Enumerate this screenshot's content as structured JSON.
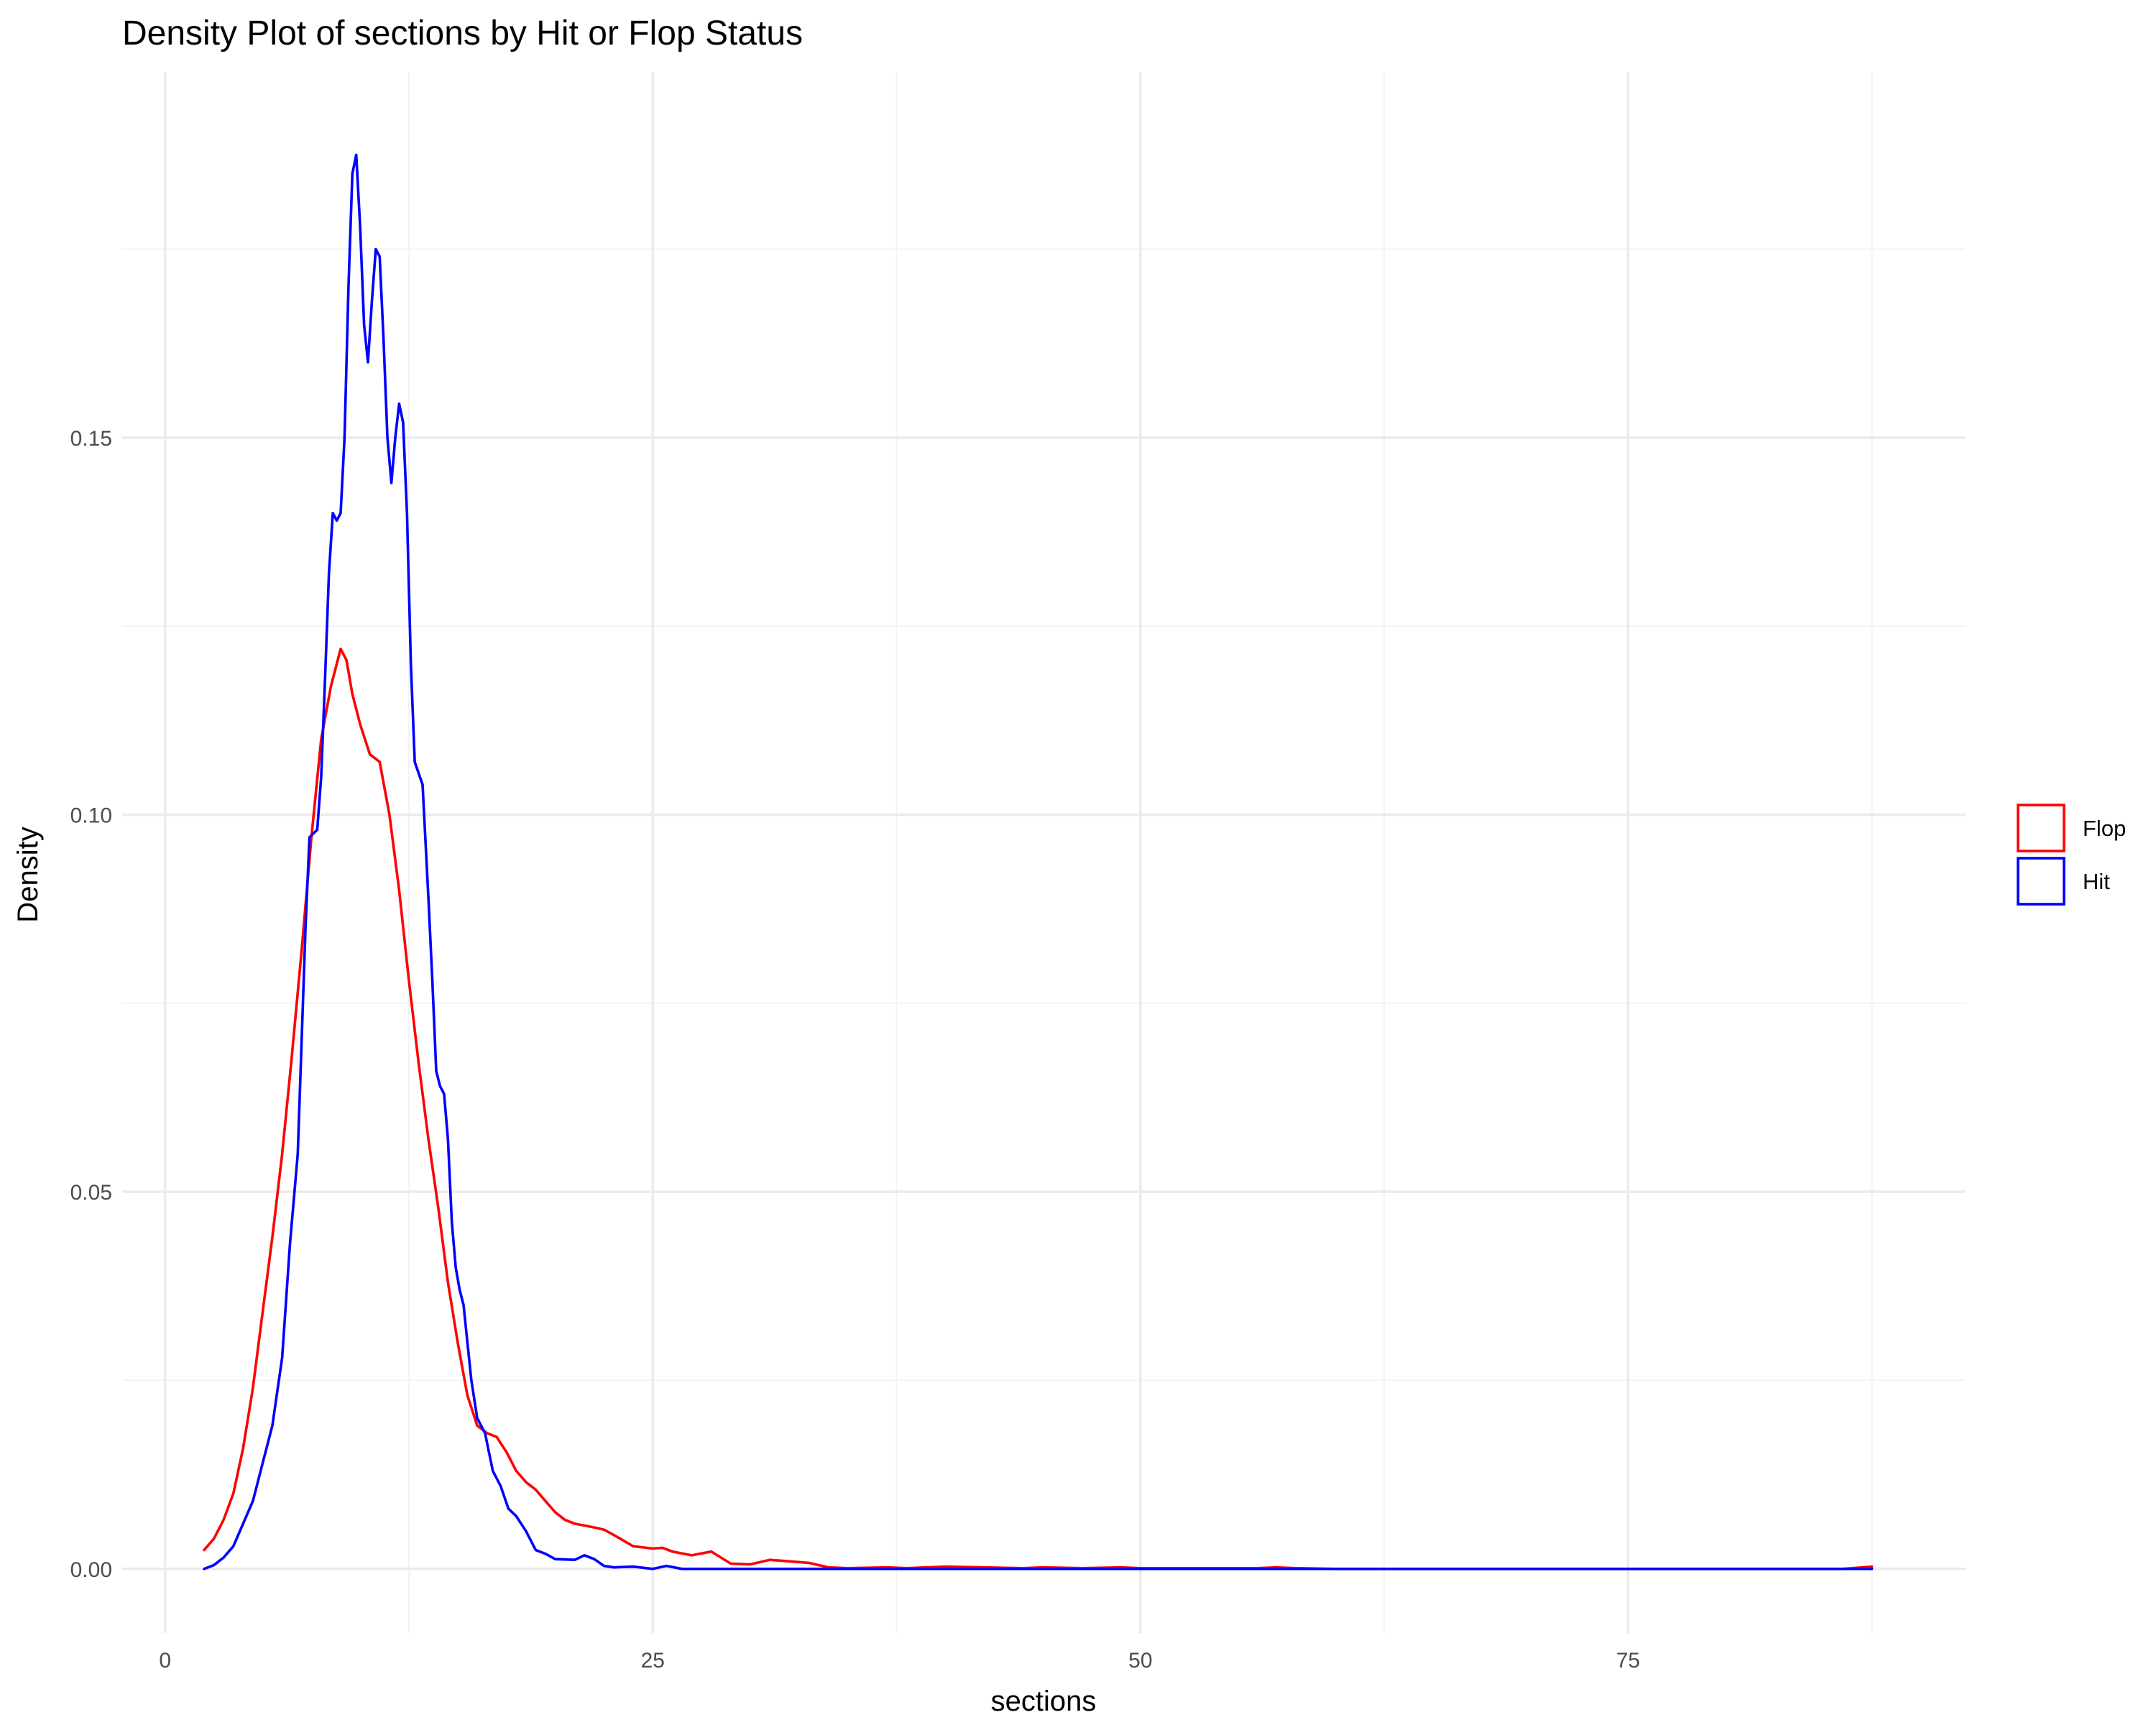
{
  "chart_data": {
    "type": "line",
    "title": "Density Plot of sections by Hit or Flop Status",
    "xlabel": "sections",
    "ylabel": "Density",
    "xlim": [
      -2.2,
      92.3
    ],
    "ylim": [
      -0.0085,
      0.1985
    ],
    "x_ticks": [
      0,
      25,
      50,
      75
    ],
    "x_tick_labels": [
      "0",
      "25",
      "50",
      "75"
    ],
    "x_minor": [
      12.5,
      37.5,
      62.5,
      87.5
    ],
    "y_ticks": [
      0,
      0.05,
      0.1,
      0.15
    ],
    "y_tick_labels": [
      "0.00",
      "0.05",
      "0.10",
      "0.15"
    ],
    "y_minor": [
      0.025,
      0.075,
      0.125,
      0.175
    ],
    "grid": true,
    "legend_position": "right",
    "series": [
      {
        "name": "Flop",
        "color": "#FF0000",
        "points": [
          [
            2,
            0.0025
          ],
          [
            2.5,
            0.004
          ],
          [
            3,
            0.0065
          ],
          [
            3.5,
            0.01
          ],
          [
            4,
            0.016
          ],
          [
            4.5,
            0.024
          ],
          [
            5,
            0.034
          ],
          [
            5.5,
            0.044
          ],
          [
            6,
            0.055
          ],
          [
            6.5,
            0.068
          ],
          [
            7,
            0.082
          ],
          [
            7.5,
            0.097
          ],
          [
            8,
            0.11
          ],
          [
            8.5,
            0.117
          ],
          [
            9,
            0.122
          ],
          [
            9.3,
            0.1205
          ],
          [
            9.6,
            0.116
          ],
          [
            10,
            0.112
          ],
          [
            10.5,
            0.108
          ],
          [
            11,
            0.107
          ],
          [
            11.5,
            0.1
          ],
          [
            12,
            0.09
          ],
          [
            12.5,
            0.078
          ],
          [
            13,
            0.067
          ],
          [
            13.5,
            0.057
          ],
          [
            14,
            0.048
          ],
          [
            14.5,
            0.038
          ],
          [
            15,
            0.03
          ],
          [
            15.5,
            0.023
          ],
          [
            16,
            0.019
          ],
          [
            16.5,
            0.018
          ],
          [
            17,
            0.0175
          ],
          [
            17.5,
            0.0155
          ],
          [
            18,
            0.013
          ],
          [
            18.5,
            0.0115
          ],
          [
            19,
            0.0105
          ],
          [
            19.5,
            0.009
          ],
          [
            20,
            0.0075
          ],
          [
            20.5,
            0.0065
          ],
          [
            21,
            0.006
          ],
          [
            22,
            0.0055
          ],
          [
            22.5,
            0.0052
          ],
          [
            23,
            0.0045
          ],
          [
            24,
            0.003
          ],
          [
            25,
            0.0027
          ],
          [
            25.5,
            0.0028
          ],
          [
            26,
            0.0023
          ],
          [
            27,
            0.0018
          ],
          [
            28,
            0.0023
          ],
          [
            28.5,
            0.0015
          ],
          [
            29,
            0.0007
          ],
          [
            30,
            0.0006
          ],
          [
            31,
            0.0012
          ],
          [
            32,
            0.001
          ],
          [
            33,
            0.0008
          ],
          [
            34,
            0.0002
          ],
          [
            35,
            0.0001
          ],
          [
            37,
            0.0002
          ],
          [
            38,
            0.0001
          ],
          [
            40,
            0.0003
          ],
          [
            42,
            0.0002
          ],
          [
            44,
            0.0001
          ],
          [
            45,
            0.0002
          ],
          [
            47,
            0.0001
          ],
          [
            49,
            0.0002
          ],
          [
            50,
            0.0001
          ],
          [
            56,
            0.0001
          ],
          [
            57,
            0.0002
          ],
          [
            58,
            0.0001
          ],
          [
            60,
            0
          ],
          [
            70,
            0
          ],
          [
            80,
            0
          ],
          [
            86,
            0
          ],
          [
            87.5,
            0.0003
          ]
        ]
      },
      {
        "name": "Hit",
        "color": "#0000FF",
        "points": [
          [
            2,
            0
          ],
          [
            2.5,
            0.0005
          ],
          [
            3,
            0.0015
          ],
          [
            3.5,
            0.003
          ],
          [
            4,
            0.006
          ],
          [
            4.5,
            0.009
          ],
          [
            5,
            0.014
          ],
          [
            5.5,
            0.019
          ],
          [
            6,
            0.028
          ],
          [
            6.4,
            0.043
          ],
          [
            6.8,
            0.055
          ],
          [
            7,
            0.07
          ],
          [
            7.2,
            0.085
          ],
          [
            7.4,
            0.097
          ],
          [
            7.8,
            0.098
          ],
          [
            8,
            0.105
          ],
          [
            8.2,
            0.118
          ],
          [
            8.4,
            0.132
          ],
          [
            8.6,
            0.14
          ],
          [
            8.8,
            0.139
          ],
          [
            9,
            0.14
          ],
          [
            9.2,
            0.15
          ],
          [
            9.4,
            0.17
          ],
          [
            9.6,
            0.185
          ],
          [
            9.8,
            0.1875
          ],
          [
            10,
            0.178
          ],
          [
            10.2,
            0.165
          ],
          [
            10.4,
            0.16
          ],
          [
            10.6,
            0.168
          ],
          [
            10.8,
            0.175
          ],
          [
            11,
            0.174
          ],
          [
            11.2,
            0.163
          ],
          [
            11.4,
            0.15
          ],
          [
            11.6,
            0.144
          ],
          [
            11.8,
            0.15
          ],
          [
            12,
            0.1545
          ],
          [
            12.2,
            0.152
          ],
          [
            12.4,
            0.14
          ],
          [
            12.6,
            0.12
          ],
          [
            12.8,
            0.107
          ],
          [
            13.2,
            0.104
          ],
          [
            13.5,
            0.089
          ],
          [
            13.7,
            0.078
          ],
          [
            13.9,
            0.066
          ],
          [
            14.1,
            0.064
          ],
          [
            14.3,
            0.063
          ],
          [
            14.5,
            0.057
          ],
          [
            14.7,
            0.046
          ],
          [
            14.9,
            0.04
          ],
          [
            15.1,
            0.037
          ],
          [
            15.3,
            0.035
          ],
          [
            15.5,
            0.03
          ],
          [
            15.7,
            0.025
          ],
          [
            16,
            0.02
          ],
          [
            16.4,
            0.018
          ],
          [
            16.8,
            0.013
          ],
          [
            17.2,
            0.011
          ],
          [
            17.6,
            0.008
          ],
          [
            18,
            0.007
          ],
          [
            18.5,
            0.005
          ],
          [
            19,
            0.0025
          ],
          [
            19.5,
            0.002
          ],
          [
            20,
            0.0013
          ],
          [
            21,
            0.0012
          ],
          [
            21.5,
            0.0018
          ],
          [
            22,
            0.0013
          ],
          [
            22.5,
            0.0004
          ],
          [
            23,
            0.0002
          ],
          [
            24,
            0.0003
          ],
          [
            25,
            0
          ],
          [
            25.7,
            0.0004
          ],
          [
            26.5,
            0
          ],
          [
            30,
            0
          ],
          [
            40,
            0
          ],
          [
            50,
            0
          ],
          [
            60,
            0
          ],
          [
            70,
            0
          ],
          [
            80,
            0
          ],
          [
            87.5,
            0
          ]
        ]
      }
    ]
  }
}
